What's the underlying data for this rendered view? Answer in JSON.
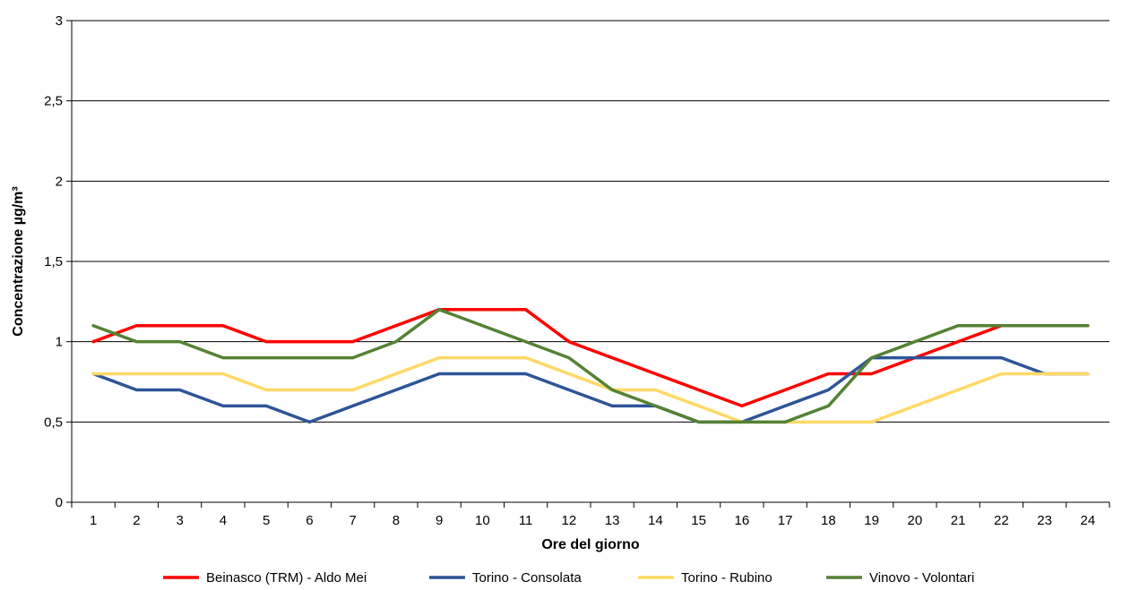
{
  "chart_data": {
    "type": "line",
    "title": "",
    "xlabel": "Ore del giorno",
    "ylabel": "Concentrazione µg/m³",
    "ylim": [
      0,
      3
    ],
    "yticks": [
      "0",
      "0,5",
      "1",
      "1,5",
      "2",
      "2,5",
      "3"
    ],
    "ytick_values": [
      0,
      0.5,
      1,
      1.5,
      2,
      2.5,
      3
    ],
    "categories": [
      "1",
      "2",
      "3",
      "4",
      "5",
      "6",
      "7",
      "8",
      "9",
      "10",
      "11",
      "12",
      "13",
      "14",
      "15",
      "16",
      "17",
      "18",
      "19",
      "20",
      "21",
      "22",
      "23",
      "24"
    ],
    "grid": "horizontal",
    "legend_position": "bottom",
    "series": [
      {
        "name": "Beinasco (TRM) - Aldo Mei",
        "color": "#ff0000",
        "values": [
          1.0,
          1.1,
          1.1,
          1.1,
          1.0,
          1.0,
          1.0,
          1.1,
          1.2,
          1.2,
          1.2,
          1.0,
          0.9,
          0.8,
          0.7,
          0.6,
          0.7,
          0.8,
          0.8,
          0.9,
          1.0,
          1.1,
          1.1,
          1.1
        ]
      },
      {
        "name": "Torino - Consolata",
        "color": "#2e5597",
        "values": [
          0.8,
          0.7,
          0.7,
          0.6,
          0.6,
          0.5,
          0.6,
          0.7,
          0.8,
          0.8,
          0.8,
          0.7,
          0.6,
          0.6,
          0.5,
          0.5,
          0.6,
          0.7,
          0.9,
          0.9,
          0.9,
          0.9,
          0.8,
          0.8
        ]
      },
      {
        "name": "Torino - Rubino",
        "color": "#ffd966",
        "values": [
          0.8,
          0.8,
          0.8,
          0.8,
          0.7,
          0.7,
          0.7,
          0.8,
          0.9,
          0.9,
          0.9,
          0.8,
          0.7,
          0.7,
          0.6,
          0.5,
          0.5,
          0.5,
          0.5,
          0.6,
          0.7,
          0.8,
          0.8,
          0.8
        ]
      },
      {
        "name": "Vinovo - Volontari",
        "color": "#548235",
        "values": [
          1.1,
          1.0,
          1.0,
          0.9,
          0.9,
          0.9,
          0.9,
          1.0,
          1.2,
          1.1,
          1.0,
          0.9,
          0.7,
          0.6,
          0.5,
          0.5,
          0.5,
          0.6,
          0.9,
          1.0,
          1.1,
          1.1,
          1.1,
          1.1
        ]
      }
    ]
  }
}
